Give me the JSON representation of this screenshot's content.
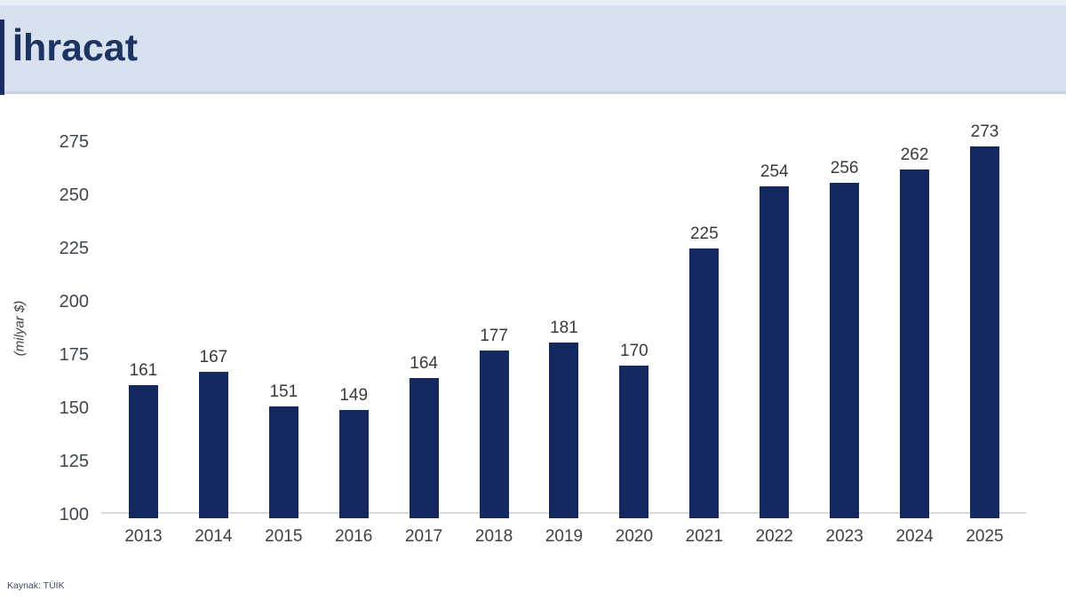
{
  "header": {
    "title": "İhracat"
  },
  "footer": {
    "source": "Kaynak: TÜİK"
  },
  "colors": {
    "header_bg": "#d8e1f0",
    "header_accent": "#1b2e5f",
    "title_text": "#1d3463",
    "bar": "#14295f",
    "axis_line": "#d9d9d9",
    "label_text": "#3a3a3a"
  },
  "chart_data": {
    "type": "bar",
    "title": "İhracat",
    "categories": [
      "2013",
      "2014",
      "2015",
      "2016",
      "2017",
      "2018",
      "2019",
      "2020",
      "2021",
      "2022",
      "2023",
      "2024",
      "2025"
    ],
    "values": [
      161,
      167,
      151,
      149,
      164,
      177,
      181,
      170,
      225,
      254,
      256,
      262,
      273
    ],
    "xlabel": "",
    "ylabel": "(milyar $)",
    "ylim": [
      100,
      275
    ],
    "yticks": [
      100,
      125,
      150,
      175,
      200,
      225,
      250,
      275
    ],
    "grid": false,
    "legend": "none",
    "data_labels": true,
    "bar_color": "#14295f"
  }
}
